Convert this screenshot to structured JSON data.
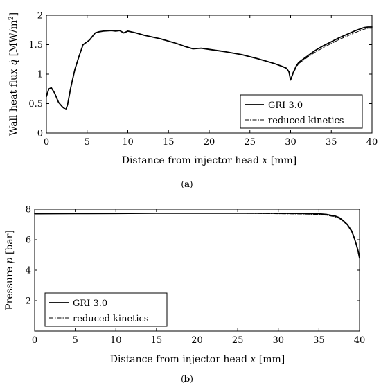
{
  "chart_data": [
    {
      "type": "line",
      "caption": "(a)",
      "caption_letter": "a",
      "ylabel_parts": [
        "Wall heat flux ",
        "q̇",
        " [MW/m",
        "2",
        "]"
      ],
      "xlabel_parts": [
        "Distance from injector head ",
        "x",
        " [mm]"
      ],
      "xlim": [
        0,
        40
      ],
      "ylim": [
        0,
        2
      ],
      "xticks": [
        0,
        5,
        10,
        15,
        20,
        25,
        30,
        35,
        40
      ],
      "yticks": [
        0,
        0.5,
        1,
        1.5,
        2
      ],
      "xtick_labels": [
        "0",
        "5",
        "10",
        "15",
        "20",
        "25",
        "30",
        "35",
        "40"
      ],
      "ytick_labels": [
        "0",
        "0.5",
        "1",
        "1.5",
        "2"
      ],
      "legend_position": "bottom-right",
      "series": [
        {
          "name": "GRI 3.0",
          "style": "solid",
          "x": [
            0,
            0.3,
            0.6,
            1.0,
            1.5,
            2.0,
            2.4,
            2.6,
            3.0,
            3.5,
            4.0,
            4.5,
            5.0,
            5.3,
            5.7,
            6.0,
            6.5,
            7.0,
            8.0,
            8.5,
            9.0,
            9.5,
            10.0,
            11.0,
            12.0,
            14.0,
            16.0,
            17.0,
            18.0,
            19.0,
            20.0,
            22.0,
            24.0,
            26.0,
            28.0,
            29.0,
            29.5,
            29.8,
            30.0,
            30.3,
            30.7,
            31.0,
            32.0,
            33.0,
            34.0,
            35.0,
            36.0,
            37.0,
            38.0,
            39.0,
            39.5,
            40.0
          ],
          "y": [
            0.62,
            0.75,
            0.77,
            0.68,
            0.52,
            0.44,
            0.4,
            0.48,
            0.78,
            1.08,
            1.3,
            1.5,
            1.55,
            1.58,
            1.65,
            1.7,
            1.72,
            1.73,
            1.74,
            1.73,
            1.74,
            1.7,
            1.73,
            1.7,
            1.66,
            1.6,
            1.52,
            1.47,
            1.43,
            1.44,
            1.42,
            1.38,
            1.33,
            1.26,
            1.18,
            1.13,
            1.1,
            1.04,
            0.9,
            1.02,
            1.14,
            1.2,
            1.3,
            1.4,
            1.48,
            1.55,
            1.62,
            1.68,
            1.74,
            1.79,
            1.8,
            1.8
          ]
        },
        {
          "name": "reduced kinetics",
          "style": "dash-dot",
          "x": [
            0,
            0.3,
            0.6,
            1.0,
            1.5,
            2.0,
            2.4,
            2.6,
            3.0,
            3.5,
            4.0,
            4.5,
            5.0,
            5.3,
            5.7,
            6.0,
            6.5,
            7.0,
            8.0,
            8.5,
            9.0,
            9.5,
            10.0,
            11.0,
            12.0,
            14.0,
            16.0,
            17.0,
            18.0,
            19.0,
            20.0,
            22.0,
            24.0,
            26.0,
            28.0,
            29.0,
            29.5,
            29.8,
            30.0,
            30.3,
            30.7,
            31.0,
            32.0,
            33.0,
            34.0,
            35.0,
            36.0,
            37.0,
            38.0,
            39.0,
            39.5,
            40.0
          ],
          "y": [
            0.62,
            0.75,
            0.77,
            0.68,
            0.52,
            0.44,
            0.4,
            0.48,
            0.78,
            1.08,
            1.3,
            1.5,
            1.55,
            1.58,
            1.65,
            1.7,
            1.72,
            1.73,
            1.74,
            1.73,
            1.74,
            1.7,
            1.73,
            1.7,
            1.66,
            1.6,
            1.52,
            1.47,
            1.43,
            1.44,
            1.42,
            1.38,
            1.33,
            1.26,
            1.18,
            1.13,
            1.1,
            1.04,
            0.9,
            1.0,
            1.12,
            1.18,
            1.28,
            1.37,
            1.45,
            1.52,
            1.59,
            1.65,
            1.71,
            1.76,
            1.78,
            1.78
          ]
        }
      ]
    },
    {
      "type": "line",
      "caption": "(b)",
      "caption_letter": "b",
      "ylabel_parts": [
        "Pressure ",
        "p",
        " [bar]"
      ],
      "xlabel_parts": [
        "Distance from injector head ",
        "x",
        " [mm]"
      ],
      "xlim": [
        0,
        40
      ],
      "ylim": [
        0,
        8
      ],
      "xticks": [
        0,
        5,
        10,
        15,
        20,
        25,
        30,
        35,
        40
      ],
      "yticks": [
        2,
        4,
        6,
        8
      ],
      "xtick_labels": [
        "0",
        "5",
        "10",
        "15",
        "20",
        "25",
        "30",
        "35",
        "40"
      ],
      "ytick_labels": [
        "2",
        "4",
        "6",
        "8"
      ],
      "legend_position": "bottom-left",
      "series": [
        {
          "name": "GRI 3.0",
          "style": "solid",
          "x": [
            0,
            5,
            10,
            15,
            20,
            25,
            30,
            33,
            35,
            36,
            37,
            37.5,
            38,
            38.5,
            39,
            39.3,
            39.6,
            39.8,
            40
          ],
          "y": [
            7.7,
            7.71,
            7.72,
            7.73,
            7.73,
            7.73,
            7.73,
            7.72,
            7.7,
            7.65,
            7.55,
            7.45,
            7.25,
            7.0,
            6.6,
            6.2,
            5.7,
            5.3,
            4.8
          ]
        },
        {
          "name": "reduced kinetics",
          "style": "dash-dot",
          "x": [
            0,
            5,
            10,
            15,
            20,
            25,
            30,
            33,
            35,
            36,
            37,
            37.5,
            38,
            38.5,
            39,
            39.3,
            39.6,
            39.8,
            40
          ],
          "y": [
            7.7,
            7.71,
            7.72,
            7.73,
            7.73,
            7.73,
            7.7,
            7.68,
            7.65,
            7.6,
            7.5,
            7.4,
            7.2,
            6.95,
            6.55,
            6.15,
            5.65,
            5.25,
            4.75
          ]
        }
      ]
    }
  ]
}
